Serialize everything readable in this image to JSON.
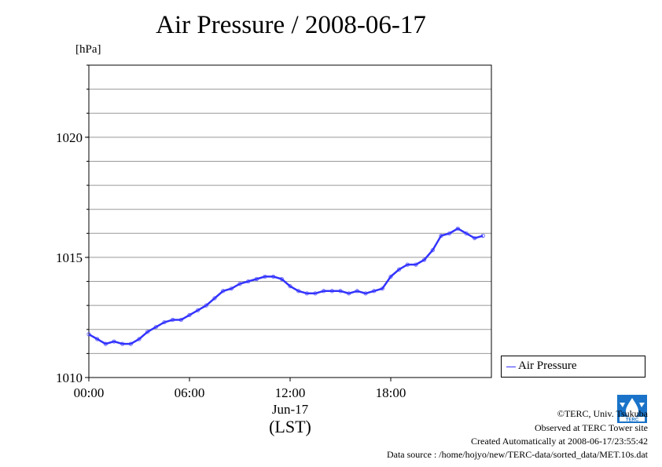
{
  "chart_data": {
    "type": "line",
    "title": "Air Pressure / 2008-06-17",
    "ylabel": "[hPa]",
    "ylim": [
      1010,
      1023
    ],
    "y_ticks": [
      1010,
      1015,
      1020
    ],
    "xlim": [
      0,
      24
    ],
    "x_ticks": [
      {
        "value": 0,
        "label": "00:00"
      },
      {
        "value": 6,
        "label": "06:00"
      },
      {
        "value": 12,
        "label": "12:00"
      },
      {
        "value": 18,
        "label": "18:00"
      }
    ],
    "x_sublabel": "Jun-17",
    "x_unit": "(LST)",
    "grid": true,
    "legend_position": "right",
    "series": [
      {
        "name": "Air Pressure",
        "color": "#3333ff",
        "x": [
          0.0,
          0.5,
          1.0,
          1.5,
          2.0,
          2.5,
          3.0,
          3.5,
          4.0,
          4.5,
          5.0,
          5.5,
          6.0,
          6.5,
          7.0,
          7.5,
          8.0,
          8.5,
          9.0,
          9.5,
          10.0,
          10.5,
          11.0,
          11.5,
          12.0,
          12.5,
          13.0,
          13.5,
          14.0,
          14.5,
          15.0,
          15.5,
          16.0,
          16.5,
          17.0,
          17.5,
          18.0,
          18.5,
          19.0,
          19.5,
          20.0,
          20.5,
          21.0,
          21.5,
          22.0,
          22.5,
          23.0,
          23.5
        ],
        "y": [
          1011.8,
          1011.6,
          1011.4,
          1011.5,
          1011.4,
          1011.4,
          1011.6,
          1011.9,
          1012.1,
          1012.3,
          1012.4,
          1012.4,
          1012.6,
          1012.8,
          1013.0,
          1013.3,
          1013.6,
          1013.7,
          1013.9,
          1014.0,
          1014.1,
          1014.2,
          1014.2,
          1014.1,
          1013.8,
          1013.6,
          1013.5,
          1013.5,
          1013.6,
          1013.6,
          1013.6,
          1013.5,
          1013.6,
          1013.5,
          1013.6,
          1013.7,
          1014.2,
          1014.5,
          1014.7,
          1014.7,
          1014.9,
          1015.3,
          1015.9,
          1016.0,
          1016.2,
          1016.0,
          1015.8,
          1015.9
        ]
      }
    ]
  },
  "footer": {
    "copyright": "©TERC, Univ. Tsukuba",
    "observed": "Observed at TERC Tower site",
    "created": "Created Automatically at 2008-06-17/23:55:42",
    "source": "Data source : /home/hojyo/new/TERC-data/sorted_data/MET.10s.dat"
  },
  "logo_text": "TERC"
}
